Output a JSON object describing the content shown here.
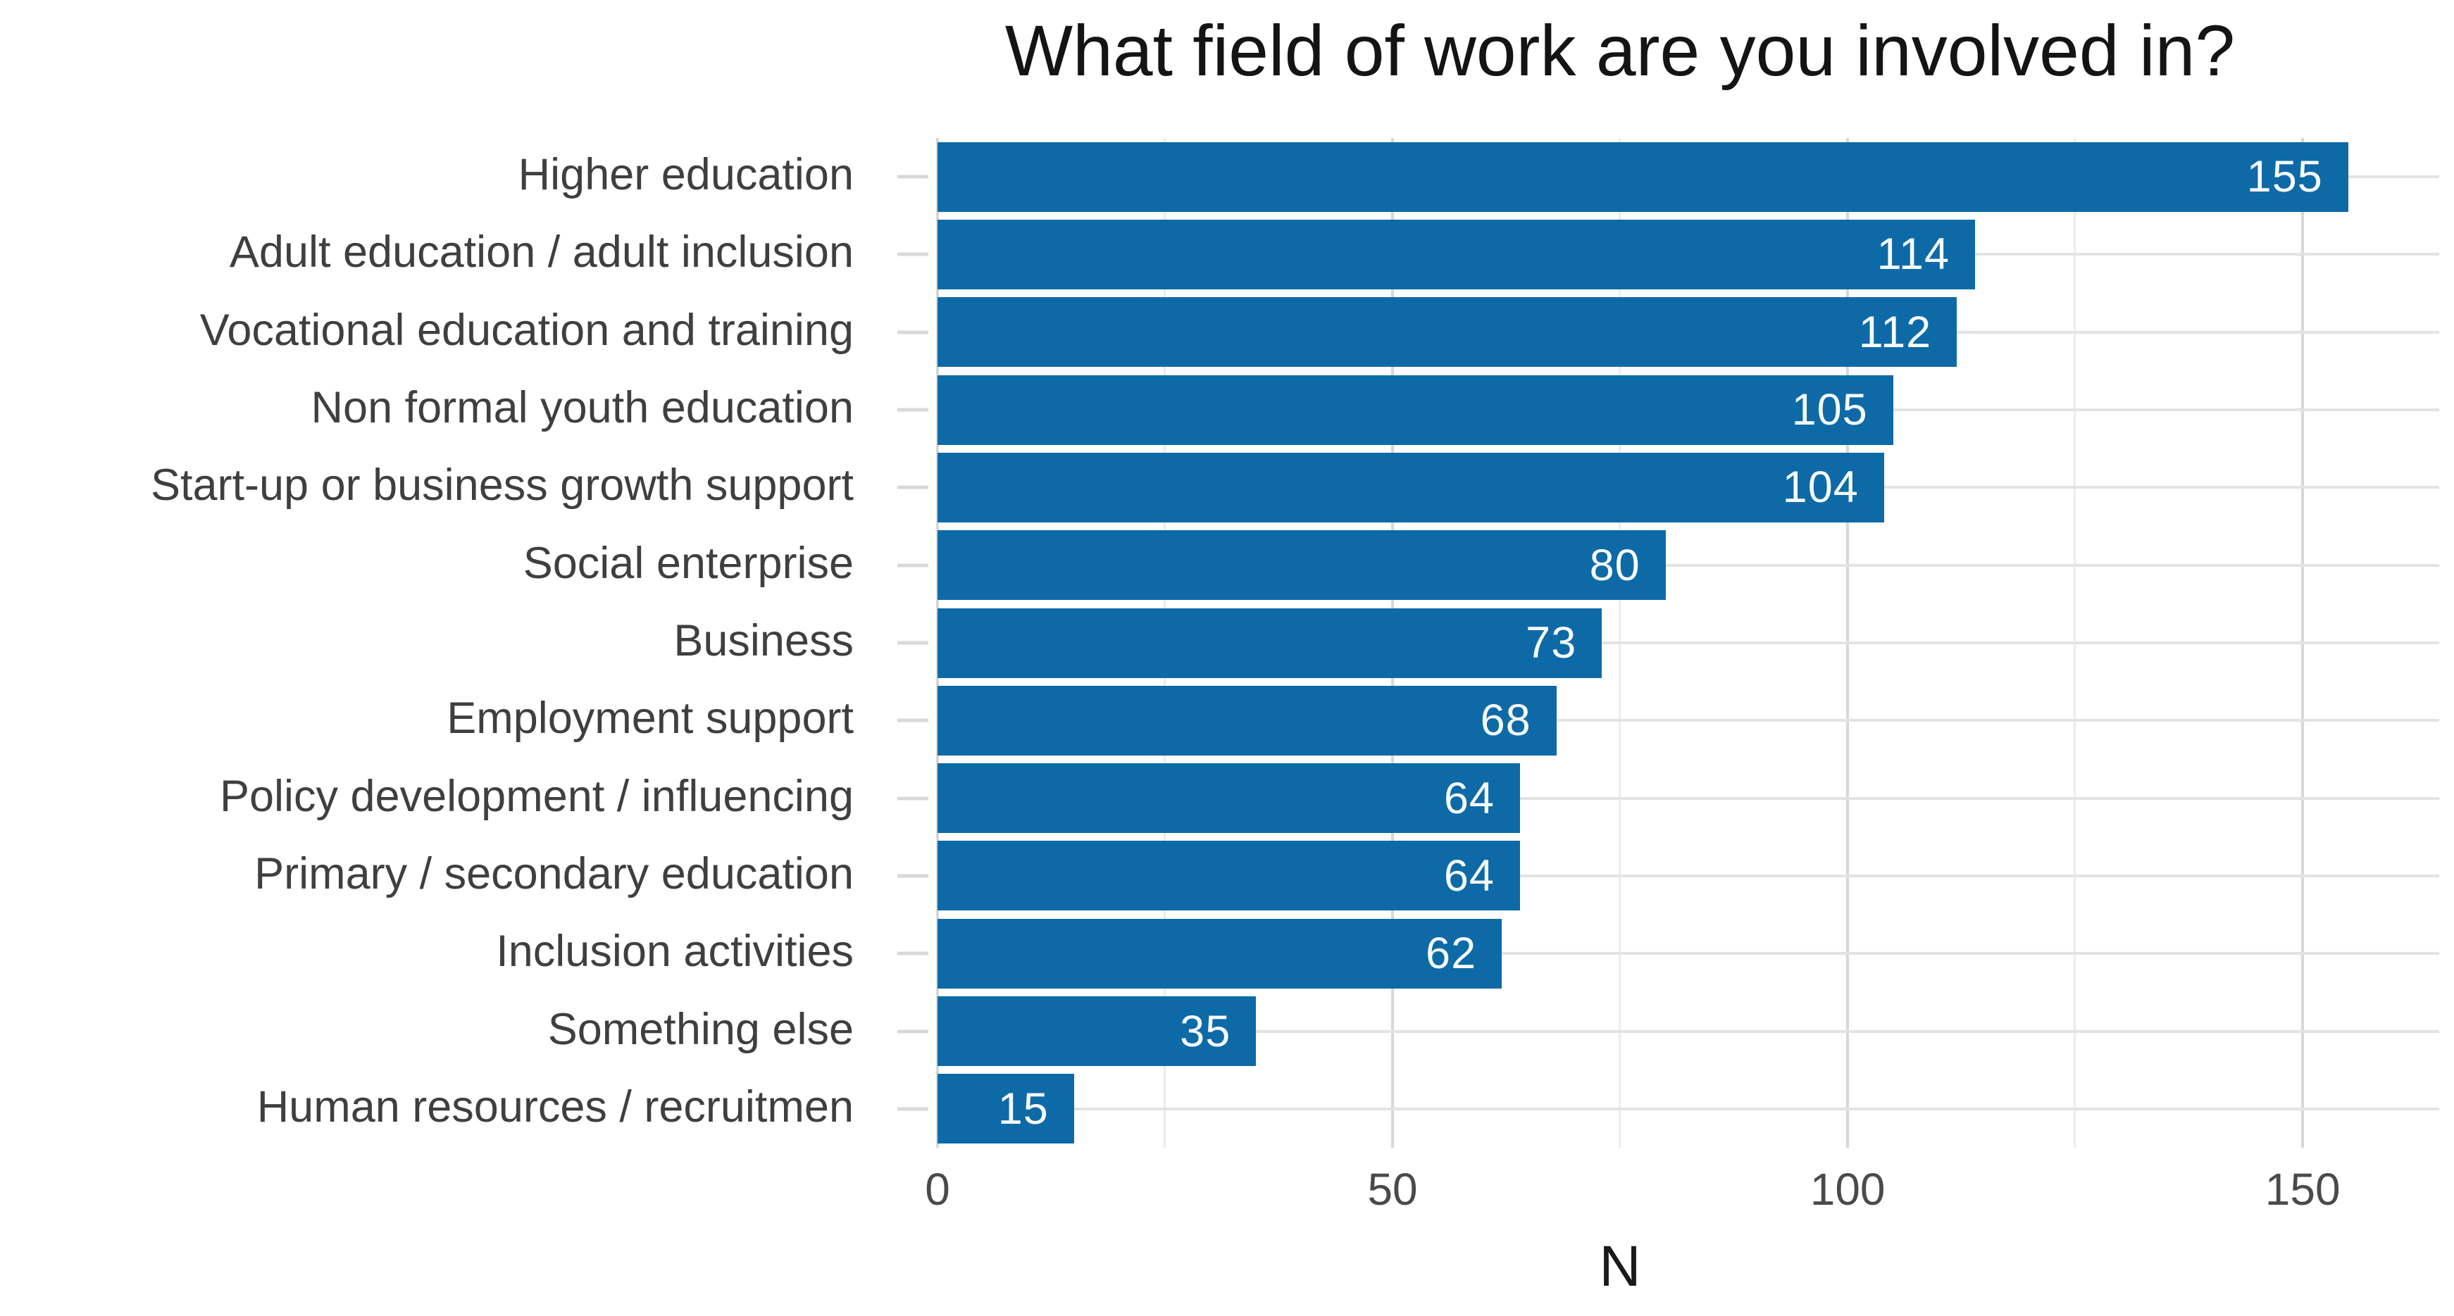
{
  "chart_data": {
    "type": "bar",
    "orientation": "horizontal",
    "title": "What field of work are you involved in?",
    "xlabel": "N",
    "categories": [
      "Higher education",
      "Adult education / adult inclusion",
      "Vocational education and training",
      "Non formal youth education",
      "Start-up or business growth support",
      "Social enterprise",
      "Business",
      "Employment support",
      "Policy development / influencing",
      "Primary / secondary education",
      "Inclusion activities",
      "Something else",
      "Human resources / recruitmen"
    ],
    "values": [
      155,
      114,
      112,
      105,
      104,
      80,
      73,
      68,
      64,
      64,
      62,
      35,
      15
    ],
    "x_ticks": [
      0,
      50,
      100,
      150
    ],
    "x_minor_ticks": [
      25,
      75,
      125
    ],
    "xlim": [
      0,
      165
    ],
    "grid": true,
    "legend_position": "none",
    "bar_color": "#0d6aa7",
    "value_label_color": "#ffffff",
    "category_text_color": "#3f3f3f",
    "axis_text_color": "#4a4a4a",
    "gridline_color_major": "#d7d7d7",
    "gridline_color_minor": "#ececec",
    "background_color": "#ffffff"
  }
}
